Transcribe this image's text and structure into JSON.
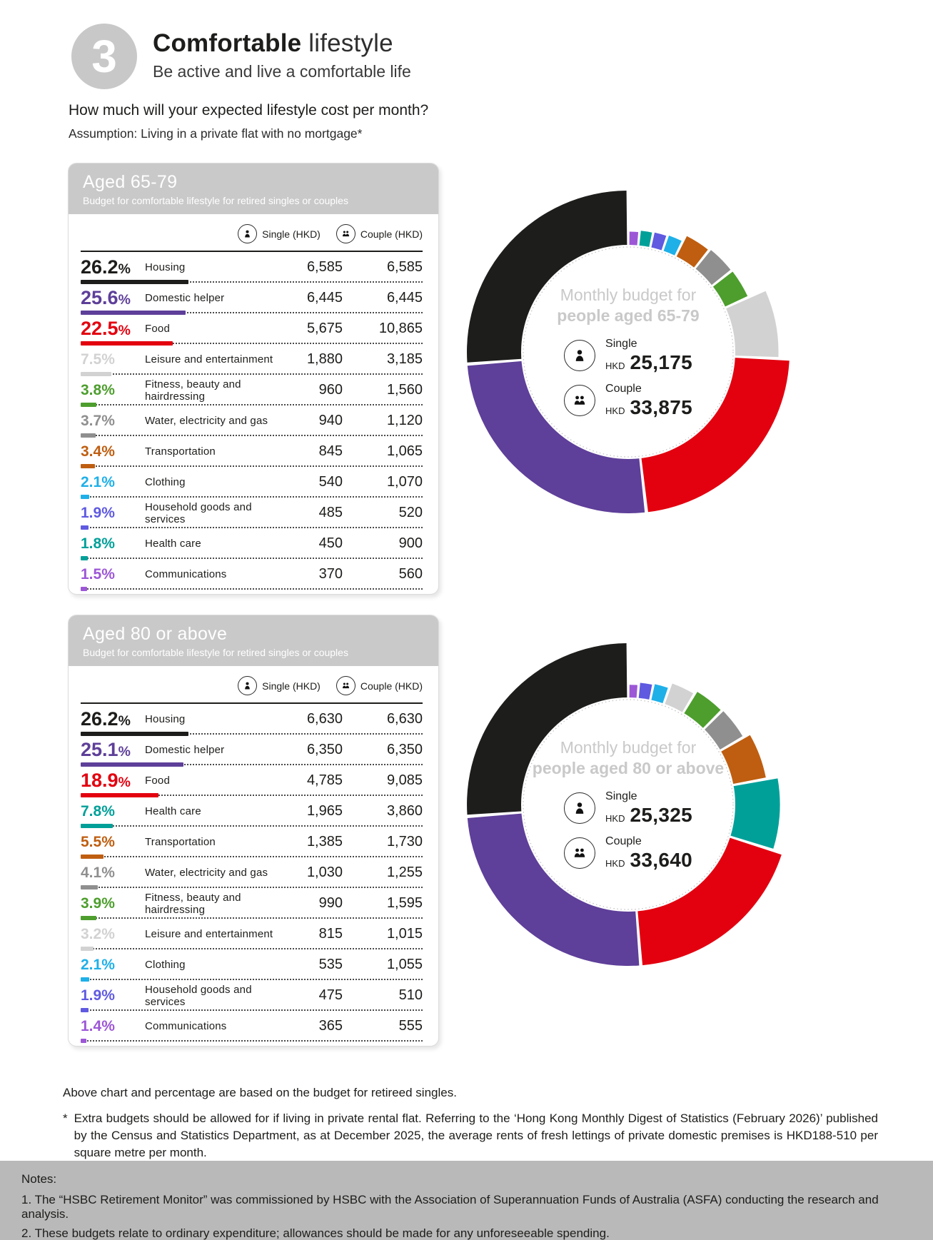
{
  "header": {
    "step_number": "3",
    "title_bold": "Comfortable",
    "title_light": " lifestyle",
    "subtitle": "Be active and live a comfortable life",
    "question": "How much will your expected lifestyle cost per month?",
    "assumption_label": "Assumption:",
    "assumption_text": " Living in a private flat with no mortgage*"
  },
  "columns": {
    "single": "Single (HKD)",
    "couple": "Couple (HKD)"
  },
  "sections": [
    {
      "card_title": "Aged 65-79",
      "card_subtitle": "Budget for comfortable lifestyle for retired singles or couples",
      "rows": [
        {
          "pct": 26.2,
          "label": "Housing",
          "single": "6,585",
          "couple": "6,585",
          "color": "#1d1d1b"
        },
        {
          "pct": 25.6,
          "label": "Domestic helper",
          "single": "6,445",
          "couple": "6,445",
          "color": "#5e3f99"
        },
        {
          "pct": 22.5,
          "label": "Food",
          "single": "5,675",
          "couple": "10,865",
          "color": "#e3000f"
        },
        {
          "pct": 7.5,
          "label": "Leisure and entertainment",
          "single": "1,880",
          "couple": "3,185",
          "color": "#d2d2d2"
        },
        {
          "pct": 3.8,
          "label": "Fitness, beauty and hairdressing",
          "single": "960",
          "couple": "1,560",
          "color": "#4d9e2d"
        },
        {
          "pct": 3.7,
          "label": "Water, electricity and gas",
          "single": "940",
          "couple": "1,120",
          "color": "#8f8f8f"
        },
        {
          "pct": 3.4,
          "label": "Transportation",
          "single": "845",
          "couple": "1,065",
          "color": "#bf5e10"
        },
        {
          "pct": 2.1,
          "label": "Clothing",
          "single": "540",
          "couple": "1,070",
          "color": "#1fb0e8"
        },
        {
          "pct": 1.9,
          "label": "Household goods and services",
          "single": "485",
          "couple": "520",
          "color": "#5f5ae0"
        },
        {
          "pct": 1.8,
          "label": "Health care",
          "single": "450",
          "couple": "900",
          "color": "#00a099"
        },
        {
          "pct": 1.5,
          "label": "Communications",
          "single": "370",
          "couple": "560",
          "color": "#9c57d6"
        }
      ],
      "donut": {
        "title_line1": "Monthly budget for",
        "title_line2": "people aged 65-79",
        "single_label": "Single",
        "single_currency": "HKD",
        "single_value": "25,175",
        "couple_label": "Couple",
        "couple_currency": "HKD",
        "couple_value": "33,875"
      }
    },
    {
      "card_title": "Aged 80 or above",
      "card_subtitle": "Budget for comfortable lifestyle for retired singles or couples",
      "rows": [
        {
          "pct": 26.2,
          "label": "Housing",
          "single": "6,630",
          "couple": "6,630",
          "color": "#1d1d1b"
        },
        {
          "pct": 25.1,
          "label": "Domestic helper",
          "single": "6,350",
          "couple": "6,350",
          "color": "#5e3f99"
        },
        {
          "pct": 18.9,
          "label": "Food",
          "single": "4,785",
          "couple": "9,085",
          "color": "#e3000f"
        },
        {
          "pct": 7.8,
          "label": "Health care",
          "single": "1,965",
          "couple": "3,860",
          "color": "#00a099"
        },
        {
          "pct": 5.5,
          "label": "Transportation",
          "single": "1,385",
          "couple": "1,730",
          "color": "#bf5e10"
        },
        {
          "pct": 4.1,
          "label": "Water, electricity and gas",
          "single": "1,030",
          "couple": "1,255",
          "color": "#8f8f8f"
        },
        {
          "pct": 3.9,
          "label": "Fitness, beauty and hairdressing",
          "single": "990",
          "couple": "1,595",
          "color": "#4d9e2d"
        },
        {
          "pct": 3.2,
          "label": "Leisure and entertainment",
          "single": "815",
          "couple": "1,015",
          "color": "#d2d2d2"
        },
        {
          "pct": 2.1,
          "label": "Clothing",
          "single": "535",
          "couple": "1,055",
          "color": "#1fb0e8"
        },
        {
          "pct": 1.9,
          "label": "Household goods and services",
          "single": "475",
          "couple": "510",
          "color": "#5f5ae0"
        },
        {
          "pct": 1.4,
          "label": "Communications",
          "single": "365",
          "couple": "555",
          "color": "#9c57d6"
        }
      ],
      "donut": {
        "title_line1": "Monthly budget for",
        "title_line2": "people aged 80 or above",
        "single_label": "Single",
        "single_currency": "HKD",
        "single_value": "25,325",
        "couple_label": "Couple",
        "couple_currency": "HKD",
        "couple_value": "33,640"
      }
    }
  ],
  "chart_data": [
    {
      "type": "pie",
      "title": "Monthly budget for people aged 65-79",
      "categories": [
        "Housing",
        "Domestic helper",
        "Food",
        "Leisure and entertainment",
        "Fitness, beauty and hairdressing",
        "Water, electricity and gas",
        "Transportation",
        "Clothing",
        "Household goods and services",
        "Health care",
        "Communications"
      ],
      "values": [
        26.2,
        25.6,
        22.5,
        7.5,
        3.8,
        3.7,
        3.4,
        2.1,
        1.9,
        1.8,
        1.5
      ],
      "unit": "percent",
      "colors": [
        "#1d1d1b",
        "#5e3f99",
        "#e3000f",
        "#d2d2d2",
        "#4d9e2d",
        "#8f8f8f",
        "#bf5e10",
        "#1fb0e8",
        "#5f5ae0",
        "#00a099",
        "#9c57d6"
      ],
      "center": {
        "single_hkd": "25,175",
        "couple_hkd": "33,875"
      },
      "layout": "donut, slices ascending clockwise from 12 o'clock, outer radius scales with percentage"
    },
    {
      "type": "pie",
      "title": "Monthly budget for people aged 80 or above",
      "categories": [
        "Housing",
        "Domestic helper",
        "Food",
        "Health care",
        "Transportation",
        "Water, electricity and gas",
        "Fitness, beauty and hairdressing",
        "Leisure and entertainment",
        "Clothing",
        "Household goods and services",
        "Communications"
      ],
      "values": [
        26.2,
        25.1,
        18.9,
        7.8,
        5.5,
        4.1,
        3.9,
        3.2,
        2.1,
        1.9,
        1.4
      ],
      "unit": "percent",
      "colors": [
        "#1d1d1b",
        "#5e3f99",
        "#e3000f",
        "#00a099",
        "#bf5e10",
        "#8f8f8f",
        "#4d9e2d",
        "#d2d2d2",
        "#1fb0e8",
        "#5f5ae0",
        "#9c57d6"
      ],
      "center": {
        "single_hkd": "25,325",
        "couple_hkd": "33,640"
      },
      "layout": "donut, slices ascending clockwise from 12 o'clock, outer radius scales with percentage"
    }
  ],
  "footnotes": {
    "based_on": "Above chart and percentage are based on the budget for retireed singles.",
    "star": "*",
    "extra": "Extra budgets should be allowed for if living in private rental flat. Referring to the ‘Hong Kong Monthly Digest of Statistics (February 2026)’ published by the Census and Statistics Department, as at December 2025, the average rents of fresh lettings of private domestic premises is HKD188-510 per square metre per month."
  },
  "notes": {
    "label": "Notes:",
    "item1": "1. The “HSBC Retirement Monitor” was commissioned by HSBC with the Association of Superannuation Funds of Australia (ASFA) conducting the research and analysis.",
    "item2": "2. These budgets relate to ordinary expenditure; allowances should be made for any unforeseeable spending."
  }
}
